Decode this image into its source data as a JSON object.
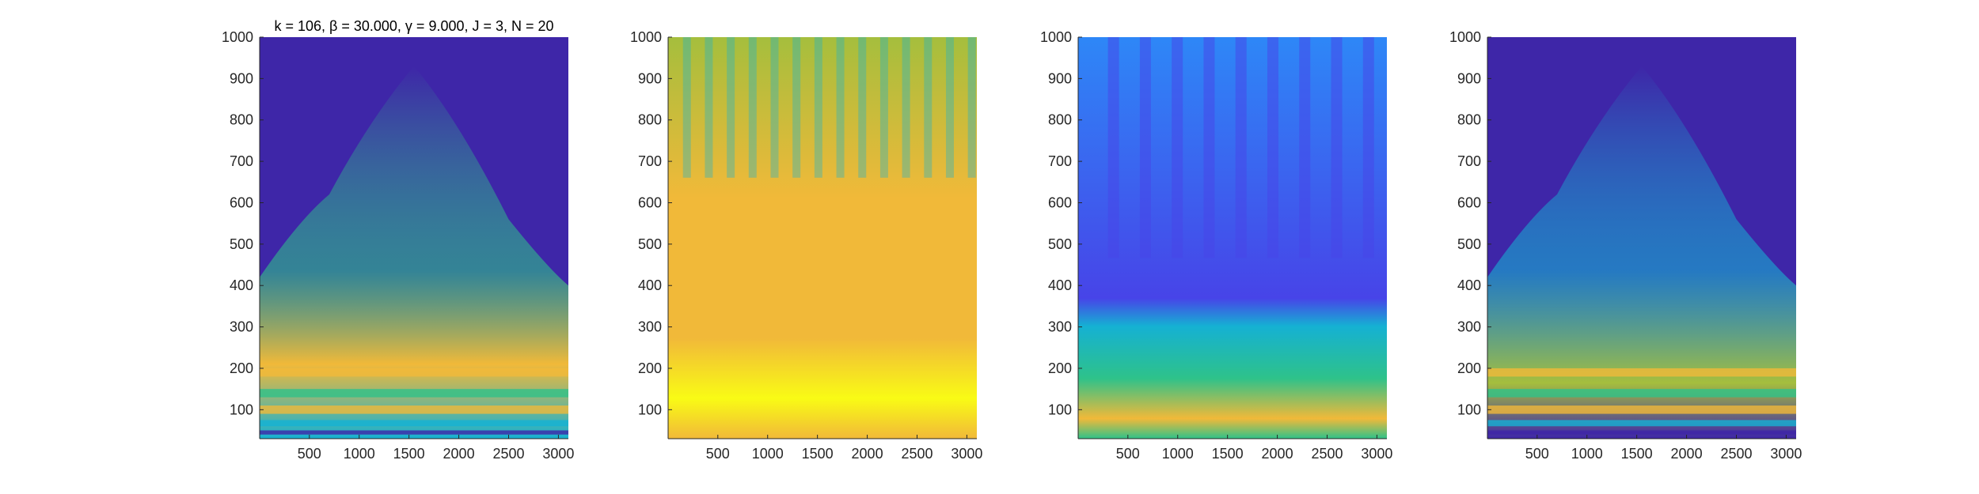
{
  "figure": {
    "colormap": [
      "#3e26a8",
      "#4744e8",
      "#2e87f7",
      "#15b1d3",
      "#2ec28a",
      "#a5be3d",
      "#f1b939",
      "#f9fb15"
    ],
    "background_color": "#3e26a8"
  },
  "chart_data": [
    {
      "type": "heatmap",
      "name": "panel-1",
      "title": "k = 106, β = 30.000, γ = 9.000, J = 3, N = 20",
      "xlim": [
        1,
        3100
      ],
      "ylim": [
        30,
        1000
      ],
      "xticks": [
        500,
        1000,
        1500,
        2000,
        2500,
        3000
      ],
      "yticks": [
        100,
        200,
        300,
        400,
        500,
        600,
        700,
        800,
        900,
        1000
      ],
      "description_levels": {
        "low_band_y": [
          30,
          250
        ],
        "peak_y": 930,
        "peak_x": 1550
      }
    },
    {
      "type": "heatmap",
      "name": "panel-2",
      "title": "",
      "xlim": [
        1,
        3100
      ],
      "ylim": [
        30,
        1000
      ],
      "xticks": [
        500,
        1000,
        1500,
        2000,
        2500,
        3000
      ],
      "yticks": [
        100,
        200,
        300,
        400,
        500,
        600,
        700,
        800,
        900,
        1000
      ],
      "description_levels": {
        "low_band_y": [
          30,
          250
        ],
        "peak_y": 1000,
        "peak_x": 1550
      }
    },
    {
      "type": "heatmap",
      "name": "panel-3",
      "title": "",
      "xlim": [
        1,
        3100
      ],
      "ylim": [
        30,
        1000
      ],
      "xticks": [
        500,
        1000,
        1500,
        2000,
        2500,
        3000
      ],
      "yticks": [
        100,
        200,
        300,
        400,
        500,
        600,
        700,
        800,
        900,
        1000
      ],
      "description_levels": {
        "low_band_y": [
          30,
          250
        ],
        "peak_y": 260,
        "peak_x": 1550
      }
    },
    {
      "type": "heatmap",
      "name": "panel-4",
      "title": "",
      "xlim": [
        1,
        3100
      ],
      "ylim": [
        30,
        1000
      ],
      "xticks": [
        500,
        1000,
        1500,
        2000,
        2500,
        3000
      ],
      "yticks": [
        100,
        200,
        300,
        400,
        500,
        600,
        700,
        800,
        900,
        1000
      ],
      "description_levels": {
        "low_band_y": [
          30,
          250
        ],
        "peak_y": 930,
        "peak_x": 1550
      }
    }
  ]
}
